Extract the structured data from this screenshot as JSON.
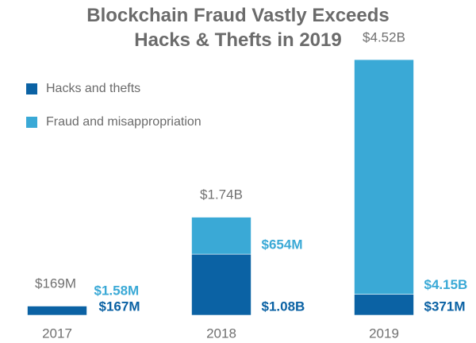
{
  "chart_data": {
    "type": "stacked_bar",
    "title": "Blockchain Fraud Vastly Exceeds Hacks & Thefts in 2019",
    "categories": [
      "2017",
      "2018",
      "2019"
    ],
    "series": [
      {
        "name": "Hacks and thefts",
        "color": "#0b62a4",
        "values": [
          167000000,
          1080000000,
          371000000
        ],
        "value_labels": [
          "$167M",
          "$1.08B",
          "$371M"
        ]
      },
      {
        "name": "Fraud and misappropriation",
        "color": "#3aa9d6",
        "values": [
          1580000,
          654000000,
          4150000000
        ],
        "value_labels": [
          "$1.58M",
          "$654M",
          "$4.15B"
        ]
      }
    ],
    "totals": [
      169000000,
      1740000000,
      4520000000
    ],
    "total_labels": [
      "$169M",
      "$1.74B",
      "$4.52B"
    ],
    "ylim": [
      0,
      5000000000
    ],
    "legend": "upper left"
  }
}
